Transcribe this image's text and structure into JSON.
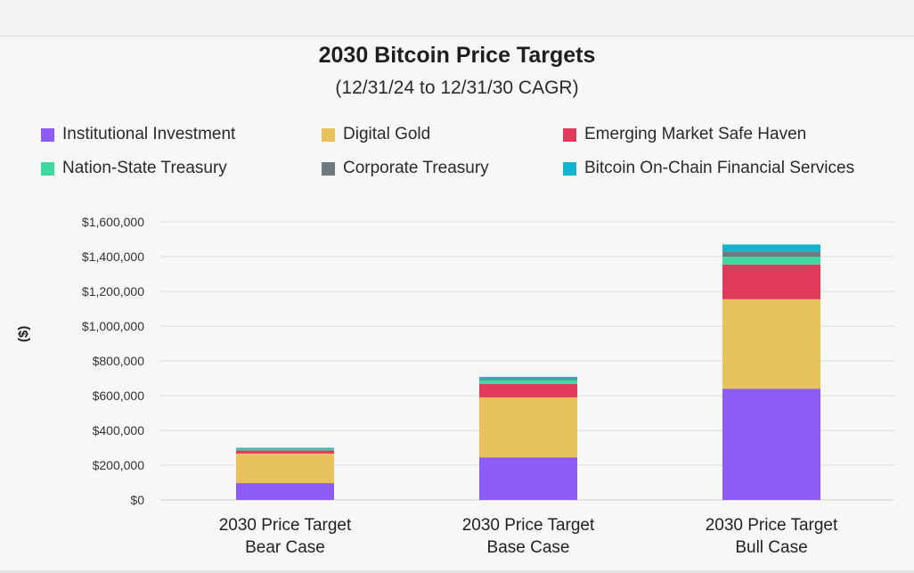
{
  "chart_data": {
    "type": "bar",
    "stacked": true,
    "title": "2030 Bitcoin Price Targets",
    "subtitle": "(12/31/24 to 12/31/30 CAGR)",
    "ylabel": "($)",
    "ylim": [
      0,
      1600000
    ],
    "yticks": [
      {
        "value": 0,
        "label": "$0"
      },
      {
        "value": 200000,
        "label": "$200,000"
      },
      {
        "value": 400000,
        "label": "$400,000"
      },
      {
        "value": 600000,
        "label": "$600,000"
      },
      {
        "value": 800000,
        "label": "$800,000"
      },
      {
        "value": 1000000,
        "label": "$1,000,000"
      },
      {
        "value": 1200000,
        "label": "$1,200,000"
      },
      {
        "value": 1400000,
        "label": "$1,400,000"
      },
      {
        "value": 1600000,
        "label": "$1,600,000"
      }
    ],
    "categories": [
      [
        "2030 Price Target",
        "Bear Case"
      ],
      [
        "2030 Price Target",
        "Base Case"
      ],
      [
        "2030 Price Target",
        "Bull Case"
      ]
    ],
    "grid": true,
    "legend_position": "top",
    "series": [
      {
        "name": "Institutional Investment",
        "color": "#8b5cf6",
        "values": [
          97000,
          245000,
          640000
        ]
      },
      {
        "name": "Digital Gold",
        "color": "#e8c25a",
        "values": [
          170000,
          345000,
          515000
        ]
      },
      {
        "name": "Emerging Market Safe Haven",
        "color": "#e03a5c",
        "values": [
          18000,
          78000,
          200000
        ]
      },
      {
        "name": "Nation-State Treasury",
        "color": "#3ed8a0",
        "values": [
          8000,
          22000,
          45000
        ]
      },
      {
        "name": "Corporate Treasury",
        "color": "#707880",
        "values": [
          2000,
          8000,
          30000
        ]
      },
      {
        "name": "Bitcoin On-Chain Financial Services",
        "color": "#14b4cf",
        "values": [
          5000,
          10000,
          40000
        ]
      }
    ]
  }
}
